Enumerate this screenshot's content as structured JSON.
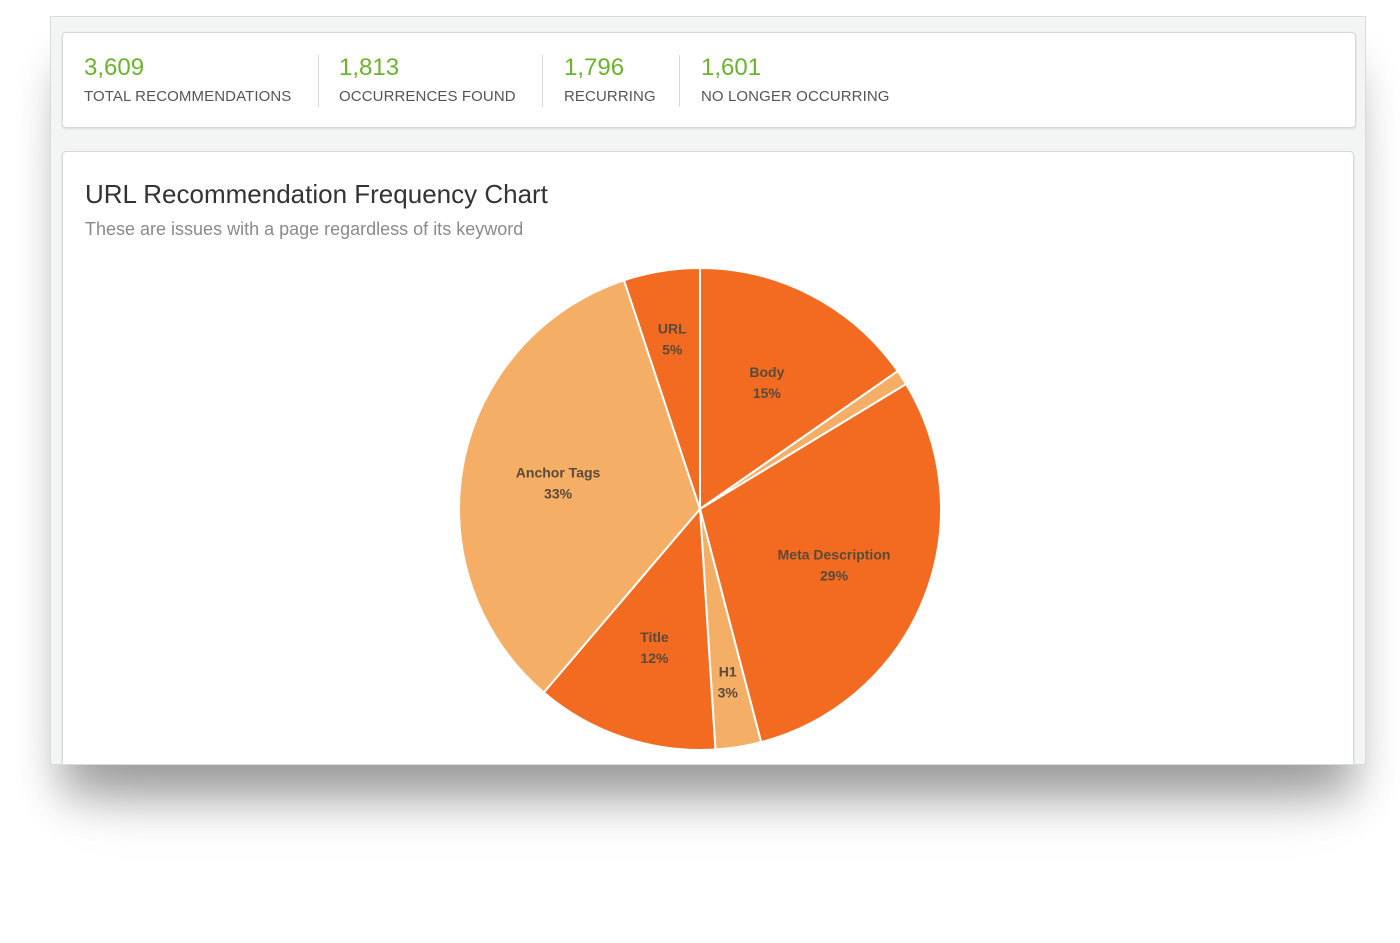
{
  "stats": [
    {
      "value": "3,609",
      "label": "TOTAL RECOMMENDATIONS"
    },
    {
      "value": "1,813",
      "label": "OCCURRENCES FOUND"
    },
    {
      "value": "1,796",
      "label": "RECURRING"
    },
    {
      "value": "1,601",
      "label": "NO LONGER OCCURRING"
    }
  ],
  "chart": {
    "title": "URL Recommendation Frequency Chart",
    "subtitle": "These are issues with a page regardless of its keyword"
  },
  "chart_data": {
    "type": "pie",
    "title": "URL Recommendation Frequency Chart",
    "subtitle": "These are issues with a page regardless of its keyword",
    "start": "top, clockwise",
    "slices": [
      {
        "name": "Body",
        "percent": 15,
        "label": "15%",
        "color": "#f26b21"
      },
      {
        "name": "",
        "percent": 1,
        "label": "",
        "color": "#f5ae66"
      },
      {
        "name": "Meta Description",
        "percent": 29,
        "label": "29%",
        "color": "#f26b21"
      },
      {
        "name": "H1",
        "percent": 3,
        "label": "3%",
        "color": "#f5ae66"
      },
      {
        "name": "Title",
        "percent": 12,
        "label": "12%",
        "color": "#f26b21"
      },
      {
        "name": "Anchor Tags",
        "percent": 33,
        "label": "33%",
        "color": "#f5ae66"
      },
      {
        "name": "URL",
        "percent": 5,
        "label": "5%",
        "color": "#f26b21"
      }
    ]
  }
}
